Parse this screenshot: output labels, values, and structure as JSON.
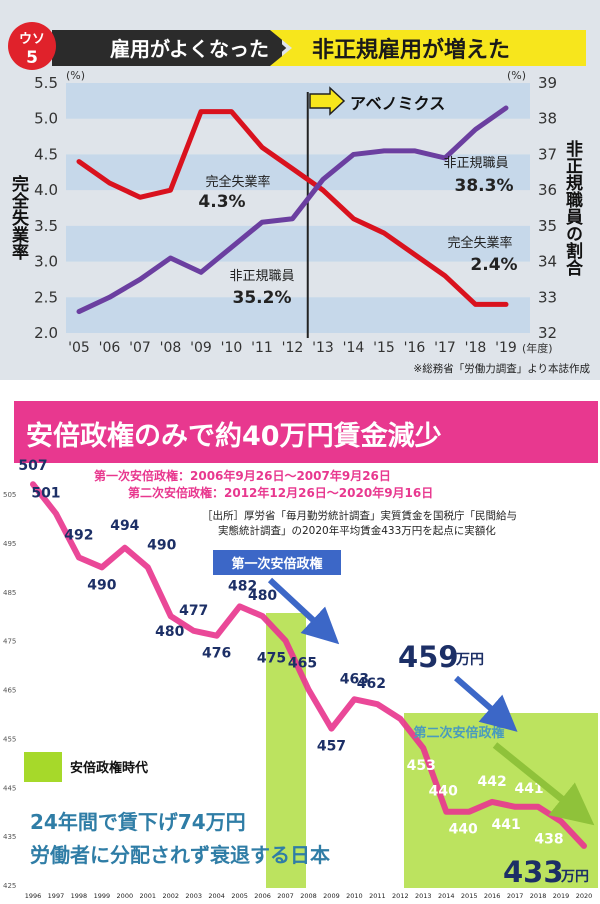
{
  "colors": {
    "top_bg": "#dfe4ea",
    "band": "#c6d8ea",
    "unemployment": "#d9121e",
    "nonregular": "#6b3fa0",
    "banner_yellow": "#f7e61c",
    "badge_red": "#e0222b",
    "pink_banner": "#e8388f",
    "wage_line": "#e8388f",
    "highlight_green": "#a6d92a",
    "navy_text": "#1c2f66",
    "arrow_blue": "#3c67c7",
    "teal_label": "#2f7da6"
  },
  "top": {
    "badge_line1": "ウソ",
    "badge_line2": "5",
    "left_title": "雇用がよくなった",
    "right_title": "非正規雇用が増えた",
    "left_unit": "(%)",
    "right_unit": "(%)",
    "left_axis_label": "完全失業率",
    "right_axis_label": "非正規職員の割合",
    "abenomics_label": "アベノミクス",
    "x_unit": "(年度)",
    "source": "※総務省「労働力調査」より本誌作成",
    "ann_unemp_start_label": "完全失業率",
    "ann_unemp_start_value": "4.3%",
    "ann_unemp_end_label": "完全失業率",
    "ann_unemp_end_value": "2.4%",
    "ann_nonreg_start_label": "非正規職員",
    "ann_nonreg_start_value": "35.2%",
    "ann_nonreg_end_label": "非正規職員",
    "ann_nonreg_end_value": "38.3%"
  },
  "bottom": {
    "banner": "安倍政権のみで約40万円賃金減少",
    "first_term": "第一次安倍政権：2006年9月26日～2007年9月26日",
    "second_term": "第二次安倍政権：2012年12月26日～2020年9月16日",
    "source_line1": "［出所］厚労省「毎月勤労統計調査」実質賃金を国税庁「民間給与",
    "source_line2": "実態統計調査」の2020年平均賃金433万円を起点に実額化",
    "first_box_label": "第一次安倍政権",
    "second_box_label": "第二次安倍政権",
    "callout_459_number": "459",
    "callout_459_unit": "万円",
    "callout_433_number": "433",
    "callout_433_unit": "万円",
    "legend_label": "安倍政権時代",
    "caption_line1": "24年間で賃下げ74万円",
    "caption_line2": "労働者に分配されず衰退する日本"
  },
  "chart_data": [
    {
      "type": "line",
      "title": "雇用がよくなった ▶ 非正規雇用が増えた",
      "categories": [
        "'05",
        "'06",
        "'07",
        "'08",
        "'09",
        "'10",
        "'11",
        "'12",
        "'13",
        "'14",
        "'15",
        "'16",
        "'17",
        "'18",
        "'19"
      ],
      "xlabel": "(年度)",
      "ylabel_left": "完全失業率 (%)",
      "ylabel_right": "非正規職員の割合 (%)",
      "ylim_left": [
        2.0,
        5.5
      ],
      "yticks_left": [
        "2.0",
        "2.5",
        "3.0",
        "3.5",
        "4.0",
        "4.5",
        "5.0",
        "5.5"
      ],
      "ylim_right": [
        32,
        39
      ],
      "yticks_right": [
        "32",
        "33",
        "34",
        "35",
        "36",
        "37",
        "38",
        "39"
      ],
      "series": [
        {
          "name": "完全失業率",
          "axis": "left",
          "values": [
            4.4,
            4.1,
            3.9,
            4.0,
            5.1,
            5.1,
            4.6,
            4.3,
            4.0,
            3.6,
            3.4,
            3.1,
            2.8,
            2.4,
            2.4
          ]
        },
        {
          "name": "非正規職員",
          "axis": "right",
          "values": [
            32.6,
            33.0,
            33.5,
            34.1,
            33.7,
            34.4,
            35.1,
            35.2,
            36.3,
            37.0,
            37.1,
            37.1,
            36.9,
            37.7,
            38.3
          ]
        }
      ],
      "annotations": [
        {
          "text": "アベノミクス",
          "x": "'12"
        },
        {
          "text": "完全失業率 4.3%"
        },
        {
          "text": "完全失業率 2.4%"
        },
        {
          "text": "非正規職員 35.2%"
        },
        {
          "text": "非正規職員 38.3%"
        }
      ]
    },
    {
      "type": "line",
      "title": "安倍政権のみで約40万円賃金減少",
      "categories": [
        "1996",
        "1997",
        "1998",
        "1999",
        "2000",
        "2001",
        "2002",
        "2003",
        "2004",
        "2005",
        "2006",
        "2007",
        "2008",
        "2009",
        "2010",
        "2011",
        "2012",
        "2013",
        "2014",
        "2015",
        "2016",
        "2017",
        "2018",
        "2019",
        "2020"
      ],
      "ylim": [
        425,
        505
      ],
      "yticks": [
        "425",
        "435",
        "445",
        "455",
        "465",
        "475",
        "485",
        "495",
        "505"
      ],
      "ylabel": "万円",
      "series": [
        {
          "name": "実質賃金(万円)",
          "values": [
            507,
            501,
            492,
            490,
            494,
            490,
            480,
            477,
            476,
            482,
            480,
            475,
            465,
            457,
            463,
            462,
            459,
            453,
            440,
            440,
            442,
            441,
            441,
            438,
            433
          ]
        }
      ],
      "data_labels": [
        "507",
        "501",
        "492",
        "490",
        "494",
        "490",
        "480",
        "477",
        "476",
        "482",
        "480",
        "475",
        "465",
        "457",
        "463",
        "462",
        "",
        "453",
        "440",
        "440",
        "442",
        "441",
        "441",
        "438",
        ""
      ],
      "highlight_periods": [
        {
          "label": "第一次安倍政権",
          "from": "2006",
          "to": "2007"
        },
        {
          "label": "第二次安倍政権",
          "from": "2012",
          "to": "2020"
        }
      ],
      "legend": "安倍政権時代"
    }
  ]
}
